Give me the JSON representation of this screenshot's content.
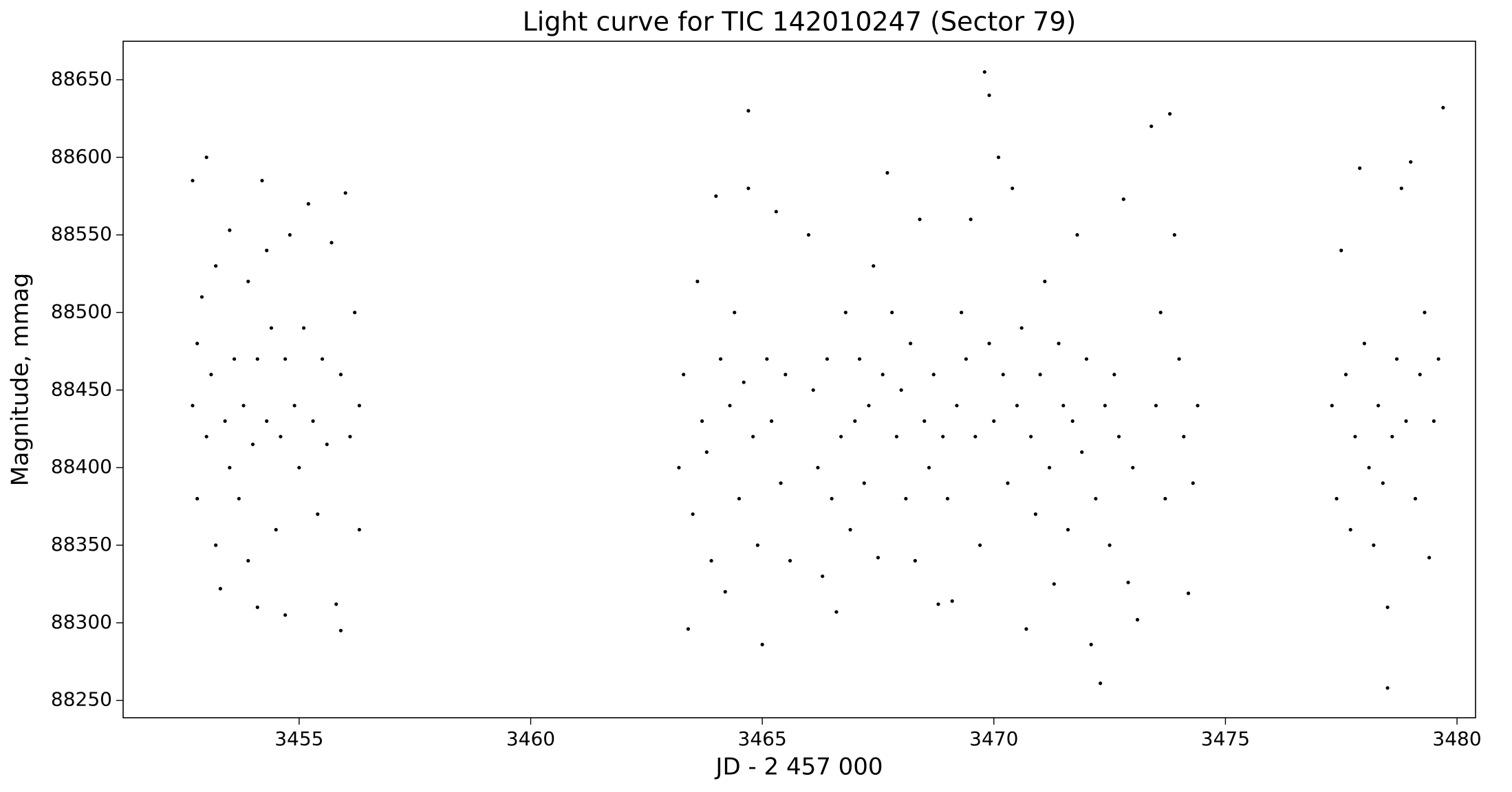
{
  "chart_data": {
    "type": "scatter",
    "title": "Light curve for TIC 142010247 (Sector 79)",
    "x_label": "JD - 2 457 000",
    "y_label": "Magnitude, mmag",
    "color": "#000000",
    "xlim": [
      3451.2,
      3480.4
    ],
    "ylim": [
      88238.8,
      88674.8
    ],
    "xticks": [
      3455,
      3460,
      3465,
      3470,
      3475,
      3480
    ],
    "yticks": [
      88250,
      88300,
      88350,
      88400,
      88450,
      88500,
      88550,
      88600,
      88650
    ],
    "grid": false,
    "x": [
      3452.7,
      3452.7,
      3452.8,
      3452.8,
      3452.9,
      3453.0,
      3453.0,
      3453.1,
      3453.2,
      3453.2,
      3453.3,
      3453.4,
      3453.5,
      3453.5,
      3453.6,
      3453.7,
      3453.8,
      3453.9,
      3453.9,
      3454.0,
      3454.1,
      3454.1,
      3454.2,
      3454.3,
      3454.3,
      3454.4,
      3454.5,
      3454.6,
      3454.7,
      3454.7,
      3454.8,
      3454.9,
      3455.0,
      3455.1,
      3455.2,
      3455.3,
      3455.4,
      3455.5,
      3455.6,
      3455.7,
      3455.8,
      3455.9,
      3455.9,
      3456.0,
      3456.1,
      3456.2,
      3456.3,
      3456.3,
      3463.2,
      3463.3,
      3463.4,
      3463.5,
      3463.6,
      3463.7,
      3463.8,
      3463.9,
      3464.0,
      3464.1,
      3464.2,
      3464.3,
      3464.4,
      3464.5,
      3464.6,
      3464.7,
      3464.7,
      3464.8,
      3464.9,
      3465.0,
      3465.1,
      3465.2,
      3465.3,
      3465.4,
      3465.5,
      3465.6,
      3466.0,
      3466.1,
      3466.2,
      3466.3,
      3466.4,
      3466.5,
      3466.6,
      3466.7,
      3466.8,
      3466.9,
      3467.0,
      3467.1,
      3467.2,
      3467.3,
      3467.4,
      3467.5,
      3467.6,
      3467.7,
      3467.8,
      3467.9,
      3468.0,
      3468.1,
      3468.2,
      3468.3,
      3468.4,
      3468.5,
      3468.6,
      3468.7,
      3468.8,
      3468.9,
      3469.0,
      3469.1,
      3469.2,
      3469.3,
      3469.4,
      3469.5,
      3469.6,
      3469.7,
      3469.8,
      3469.9,
      3469.9,
      3470.0,
      3470.1,
      3470.2,
      3470.3,
      3470.4,
      3470.5,
      3470.6,
      3470.7,
      3470.8,
      3470.9,
      3471.0,
      3471.1,
      3471.2,
      3471.3,
      3471.4,
      3471.5,
      3471.6,
      3471.7,
      3471.8,
      3471.9,
      3472.0,
      3472.1,
      3472.2,
      3472.3,
      3472.4,
      3472.5,
      3472.6,
      3472.7,
      3472.8,
      3472.9,
      3473.0,
      3473.1,
      3473.4,
      3473.5,
      3473.6,
      3473.7,
      3473.8,
      3473.9,
      3474.0,
      3474.1,
      3474.2,
      3474.3,
      3474.4,
      3477.3,
      3477.4,
      3477.5,
      3477.6,
      3477.7,
      3477.8,
      3477.9,
      3478.0,
      3478.1,
      3478.2,
      3478.3,
      3478.4,
      3478.5,
      3478.5,
      3478.6,
      3478.7,
      3478.8,
      3478.9,
      3479.0,
      3479.1,
      3479.2,
      3479.3,
      3479.4,
      3479.5,
      3479.6,
      3479.7
    ],
    "values": [
      88585,
      88440,
      88480,
      88380,
      88510,
      88600,
      88420,
      88460,
      88350,
      88530,
      88322,
      88430,
      88400,
      88553,
      88470,
      88380,
      88440,
      88340,
      88520,
      88415,
      88470,
      88310,
      88585,
      88540,
      88430,
      88490,
      88360,
      88420,
      88305,
      88470,
      88550,
      88440,
      88400,
      88490,
      88570,
      88430,
      88370,
      88470,
      88415,
      88545,
      88312,
      88460,
      88295,
      88577,
      88420,
      88500,
      88360,
      88440,
      88400,
      88460,
      88296,
      88370,
      88520,
      88430,
      88410,
      88340,
      88575,
      88470,
      88320,
      88440,
      88500,
      88380,
      88455,
      88630,
      88580,
      88420,
      88350,
      88286,
      88470,
      88430,
      88565,
      88390,
      88460,
      88340,
      88550,
      88450,
      88400,
      88330,
      88470,
      88380,
      88307,
      88420,
      88500,
      88360,
      88430,
      88470,
      88390,
      88440,
      88530,
      88342,
      88460,
      88590,
      88500,
      88420,
      88450,
      88380,
      88480,
      88340,
      88560,
      88430,
      88400,
      88460,
      88312,
      88420,
      88380,
      88314,
      88440,
      88500,
      88470,
      88560,
      88420,
      88350,
      88655,
      88640,
      88480,
      88430,
      88600,
      88460,
      88390,
      88580,
      88440,
      88490,
      88296,
      88420,
      88370,
      88460,
      88520,
      88400,
      88325,
      88480,
      88440,
      88360,
      88430,
      88550,
      88410,
      88470,
      88286,
      88380,
      88261,
      88440,
      88350,
      88460,
      88420,
      88573,
      88326,
      88400,
      88302,
      88620,
      88440,
      88500,
      88380,
      88628,
      88550,
      88470,
      88420,
      88319,
      88390,
      88440,
      88440,
      88380,
      88540,
      88460,
      88360,
      88420,
      88593,
      88480,
      88400,
      88350,
      88440,
      88390,
      88258,
      88310,
      88420,
      88470,
      88580,
      88430,
      88597,
      88380,
      88460,
      88500,
      88342,
      88430,
      88470,
      88632
    ]
  }
}
